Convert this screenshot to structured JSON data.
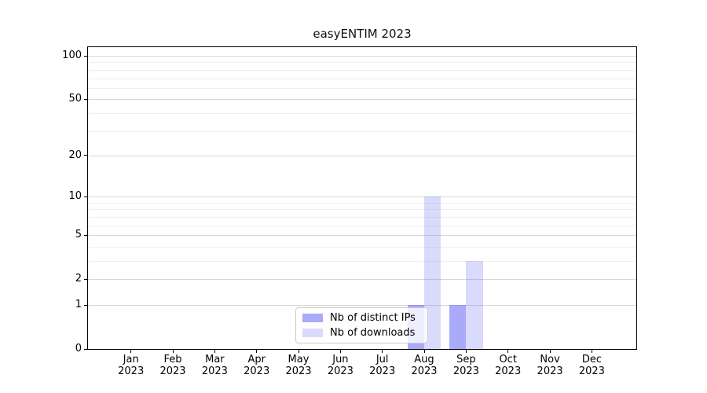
{
  "title": "easyENTIM 2023",
  "chart_data": {
    "type": "bar",
    "title": "easyENTIM 2023",
    "categories": [
      {
        "month": "Jan",
        "year": "2023"
      },
      {
        "month": "Feb",
        "year": "2023"
      },
      {
        "month": "Mar",
        "year": "2023"
      },
      {
        "month": "Apr",
        "year": "2023"
      },
      {
        "month": "May",
        "year": "2023"
      },
      {
        "month": "Jun",
        "year": "2023"
      },
      {
        "month": "Jul",
        "year": "2023"
      },
      {
        "month": "Aug",
        "year": "2023"
      },
      {
        "month": "Sep",
        "year": "2023"
      },
      {
        "month": "Oct",
        "year": "2023"
      },
      {
        "month": "Nov",
        "year": "2023"
      },
      {
        "month": "Dec",
        "year": "2023"
      }
    ],
    "series": [
      {
        "name": "Nb of distinct IPs",
        "color": "rgba(85,85,245,0.5)",
        "values": [
          0,
          0,
          0,
          0,
          0,
          0,
          0,
          1,
          1,
          0,
          0,
          0
        ]
      },
      {
        "name": "Nb of downloads",
        "color": "rgba(85,85,245,0.22)",
        "values": [
          0,
          0,
          0,
          0,
          0,
          0,
          0,
          10,
          3,
          0,
          0,
          0
        ]
      }
    ],
    "xlabel": "",
    "ylabel": "",
    "yscale": "log1p",
    "ylim": [
      0,
      112
    ],
    "y_major_ticks": [
      0,
      1,
      2,
      5,
      10,
      20,
      50,
      100
    ],
    "y_minor_gridlines": [
      3,
      4,
      6,
      7,
      8,
      9,
      30,
      40,
      60,
      70,
      80,
      90
    ],
    "grid": true,
    "legend_position": "lower center"
  },
  "legend": {
    "items": [
      {
        "label": "Nb of distinct IPs"
      },
      {
        "label": "Nb of downloads"
      }
    ]
  },
  "colors": {
    "grid_major": "#d7d7d7",
    "grid_minor": "#efefef",
    "spine": "#000000",
    "bar_base": "#5555f5",
    "legend_border": "#cccccc",
    "background": "#ffffff"
  }
}
